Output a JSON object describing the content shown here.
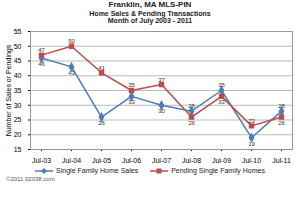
{
  "chart_data": {
    "type": "line",
    "title": "Franklin, MA MLS-PIN",
    "subtitle": [
      "Home Sales & Pending Transactions",
      "Month of July 2003 - 2011"
    ],
    "y_label": "Number of Sales or Pendings",
    "annotations": [
      "©2011 02038.com"
    ],
    "categories": [
      "Jul-03",
      "Jul-04",
      "Jul-05",
      "Jul-06",
      "Jul-07",
      "Jul-08",
      "Jul-09",
      "Jul-10",
      "Jul-11"
    ],
    "series": [
      {
        "name": "Single Family Home Sales",
        "color": "#4a7ebb",
        "marker": "diamond",
        "values": [
          46,
          43,
          26,
          33,
          30,
          28,
          35,
          19,
          28
        ]
      },
      {
        "name": "Pending Single Family Homes",
        "color": "#be4b48",
        "marker": "square",
        "values": [
          47,
          50,
          41,
          35,
          37,
          26,
          33,
          23,
          26
        ]
      }
    ],
    "ylim": [
      15,
      55
    ],
    "yticks": [
      15,
      20,
      25,
      30,
      35,
      40,
      45,
      50,
      55
    ],
    "grid": true,
    "legend": "bottom",
    "data_labels": true
  }
}
